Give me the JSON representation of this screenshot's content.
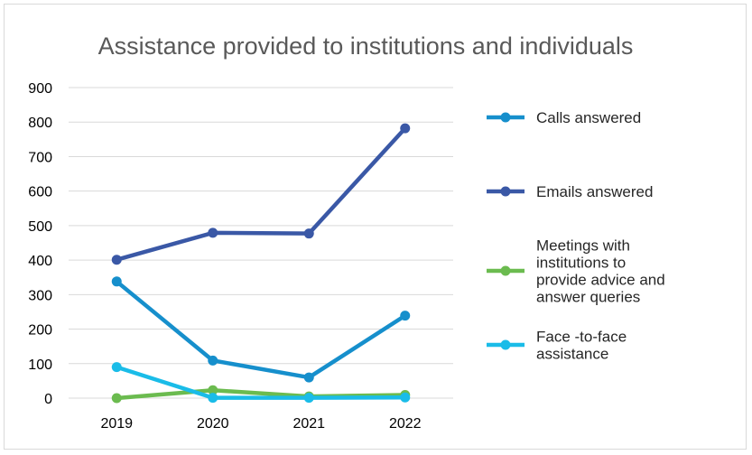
{
  "chart_data": {
    "type": "line",
    "title": "Assistance provided to institutions and individuals",
    "categories": [
      "2019",
      "2020",
      "2021",
      "2022"
    ],
    "ylim": [
      0,
      900
    ],
    "yticks": [
      0,
      100,
      200,
      300,
      400,
      500,
      600,
      700,
      800,
      900
    ],
    "ytick_labels": [
      "0",
      "100",
      "200",
      "300",
      "400",
      "500",
      "600",
      "700",
      "800",
      "900"
    ],
    "grid": true,
    "legend_position": "right",
    "series": [
      {
        "name": "Calls answered",
        "name_lines": [
          "Calls answered"
        ],
        "color": "#168FCC",
        "values": [
          338,
          109,
          60,
          239
        ]
      },
      {
        "name": "Emails answered",
        "name_lines": [
          "Emails answered"
        ],
        "color": "#3A58A6",
        "values": [
          401,
          479,
          477,
          782
        ]
      },
      {
        "name": "Meetings with institutions to provide advice and answer queries",
        "name_lines": [
          "Meetings with",
          "institutions to",
          "provide advice and",
          "answer queries"
        ],
        "color": "#6BBB4F",
        "values": [
          0,
          23,
          5,
          9
        ]
      },
      {
        "name": "Face -to-face assistance",
        "name_lines": [
          "Face -to-face",
          "assistance"
        ],
        "color": "#1ABCE8",
        "values": [
          90,
          1,
          1,
          2
        ]
      }
    ]
  }
}
